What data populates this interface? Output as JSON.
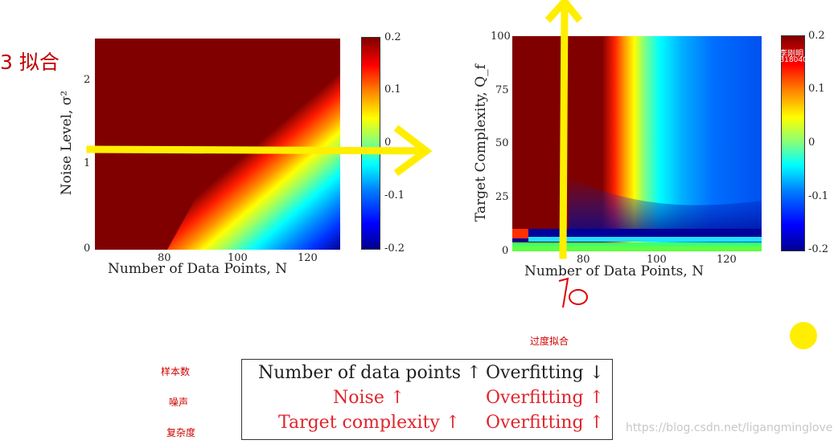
{
  "title_partial": "3 拟合",
  "colors": {
    "annotation_red": "#d00000",
    "arrow_yellow": "#ffee00",
    "dark_red": "#800000"
  },
  "chart_data": [
    {
      "type": "heatmap",
      "title": "",
      "xlabel": "Number of Data Points, N",
      "ylabel": "Noise Level, σ²",
      "xticks": [
        "80",
        "100",
        "120"
      ],
      "yticks": [
        "0",
        "1",
        "2"
      ],
      "xlim": [
        60,
        130
      ],
      "ylim": [
        0,
        2.5
      ],
      "colorbar": {
        "ticks": [
          "0.2",
          "0.1",
          "0",
          "-0.1",
          "-0.2"
        ],
        "range": [
          -0.2,
          0.2
        ]
      },
      "annotation": "arrow at σ² ≈ 1.15 pointing right"
    },
    {
      "type": "heatmap",
      "title": "",
      "xlabel": "Number of Data Points, N",
      "ylabel": "Target Complexity, Q_f",
      "xticks": [
        "80",
        "100",
        "120"
      ],
      "yticks": [
        "0",
        "25",
        "50",
        "75",
        "100"
      ],
      "xlim": [
        60,
        130
      ],
      "ylim": [
        0,
        100
      ],
      "colorbar": {
        "ticks": [
          "0.2",
          "0.1",
          "0",
          "-0.1",
          "-0.2"
        ],
        "range": [
          -0.2,
          0.2
        ]
      },
      "colorbar_overlay_text": [
        "李刚明",
        "B180400107"
      ],
      "annotation": "vertical arrow at N ≈ 75, handwritten 70"
    }
  ],
  "handwritten_label": "70",
  "overfit_label": "过度拟合",
  "row_labels_cn": [
    "样本数",
    "噪声",
    "复杂度"
  ],
  "summary_table": [
    {
      "factor": "Number of data points ↑",
      "effect": "Overfitting ↓"
    },
    {
      "factor": "Noise ↑",
      "effect": "Overfitting ↑"
    },
    {
      "factor": "Target complexity ↑",
      "effect": "Overfitting ↑"
    }
  ],
  "watermark": "https://blog.csdn.net/ligangminglove"
}
